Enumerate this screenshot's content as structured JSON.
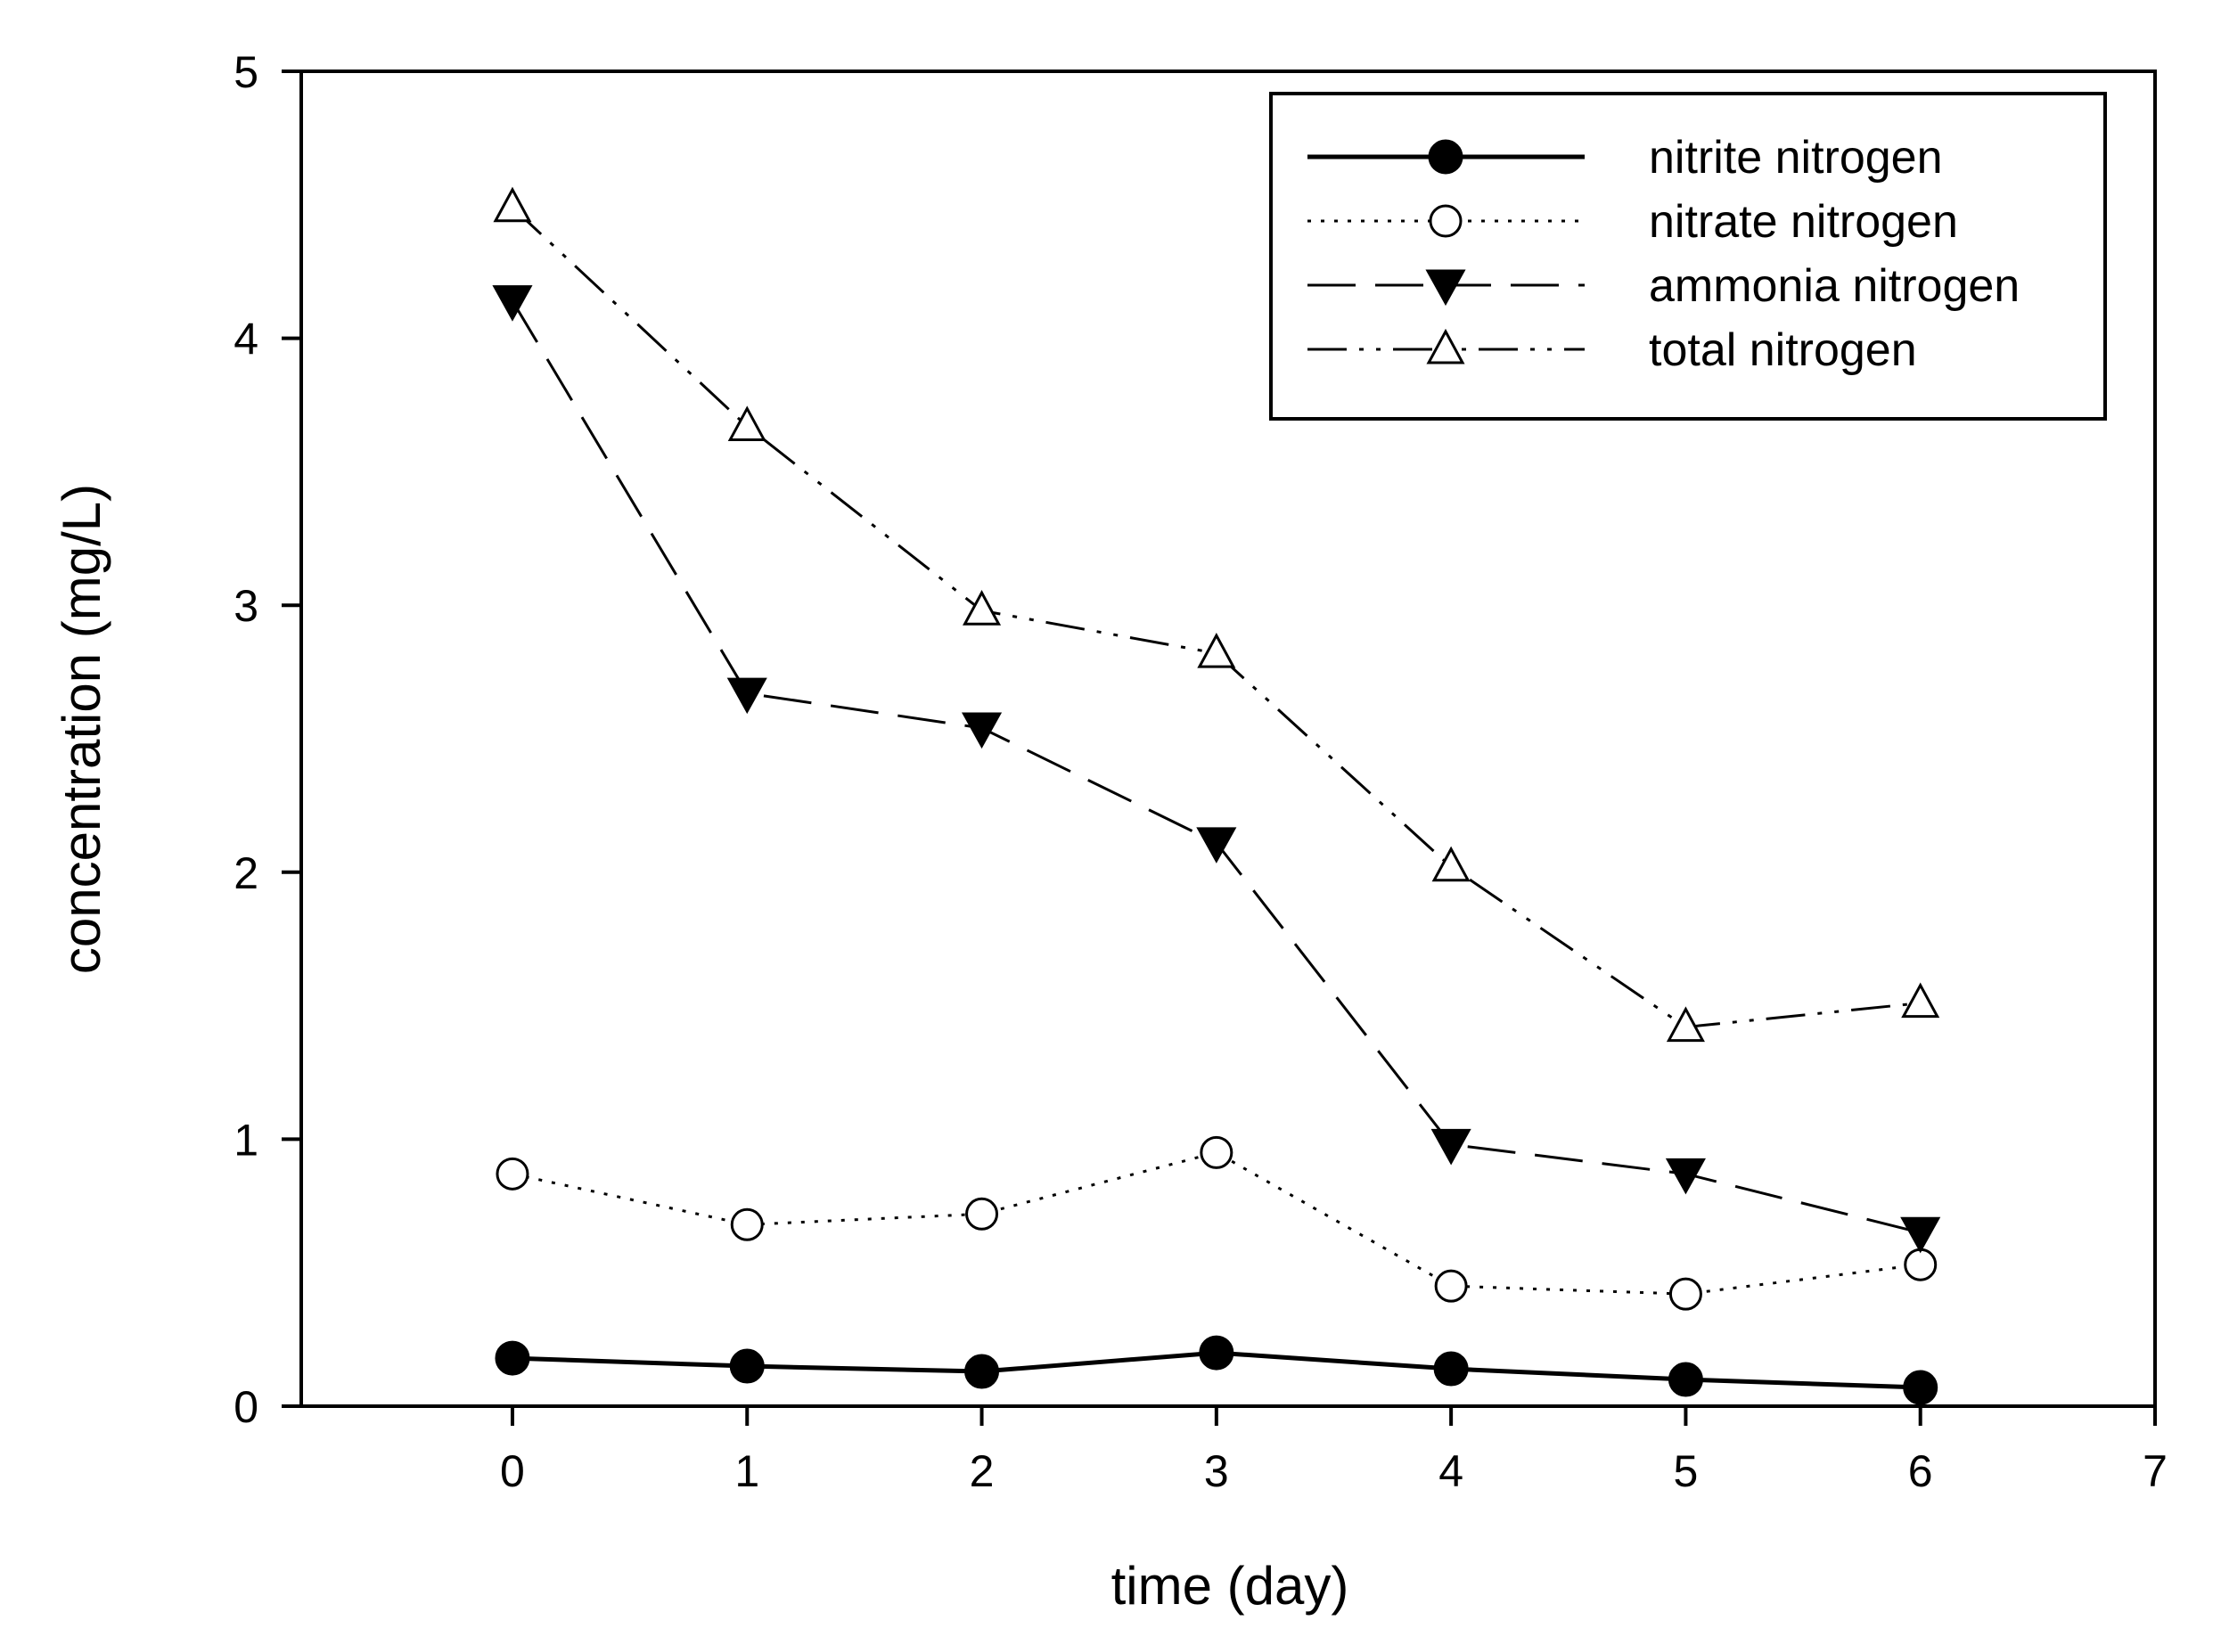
{
  "chart_data": {
    "type": "line",
    "title": "",
    "xlabel": "time (day)",
    "ylabel": "concentration (mg/L)",
    "xlim": [
      -0.9,
      7
    ],
    "ylim": [
      0,
      5
    ],
    "xticks": [
      0,
      1,
      2,
      3,
      4,
      5,
      6,
      7
    ],
    "yticks": [
      0,
      1,
      2,
      3,
      4,
      5
    ],
    "grid": false,
    "legend_position": "top-right",
    "x": [
      0,
      1,
      2,
      3,
      4,
      5,
      6
    ],
    "series": [
      {
        "name": "nitrite nitrogen",
        "line": "solid",
        "marker": "circle-filled",
        "values": [
          0.18,
          0.15,
          0.13,
          0.2,
          0.14,
          0.1,
          0.07
        ]
      },
      {
        "name": "nitrate nitrogen",
        "line": "dotted",
        "marker": "circle-open",
        "values": [
          0.87,
          0.68,
          0.72,
          0.95,
          0.45,
          0.42,
          0.53
        ]
      },
      {
        "name": "ammonia nitrogen",
        "line": "dashed",
        "marker": "triangle-down-filled",
        "values": [
          4.14,
          2.67,
          2.54,
          2.11,
          0.98,
          0.87,
          0.65
        ]
      },
      {
        "name": "total nitrogen",
        "line": "dash-dot-dot",
        "marker": "triangle-up-open",
        "values": [
          4.49,
          3.67,
          2.98,
          2.82,
          2.02,
          1.42,
          1.51
        ]
      }
    ]
  }
}
